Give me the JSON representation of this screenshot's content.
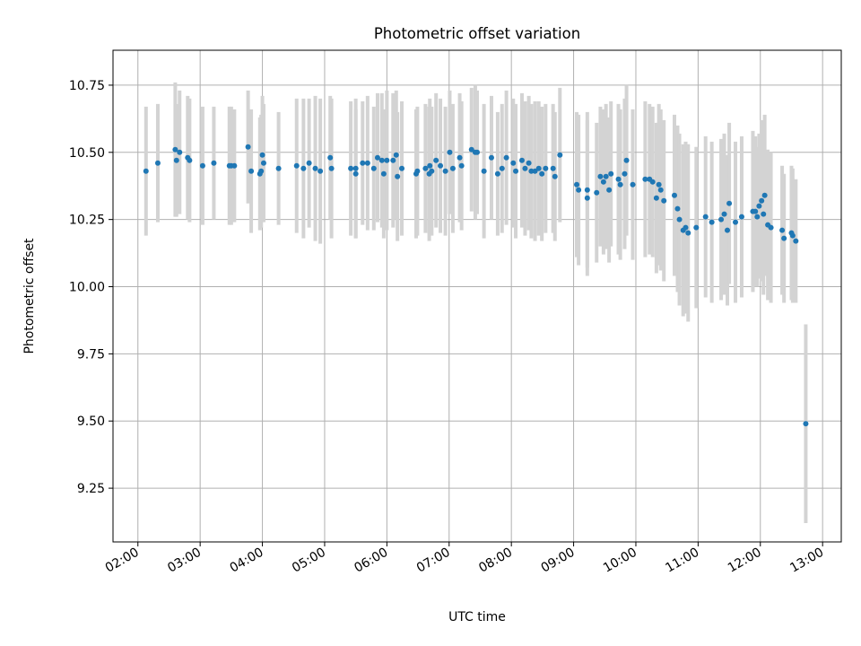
{
  "chart_data": {
    "type": "scatter",
    "title": "Photometric offset variation",
    "xlabel": "UTC time",
    "ylabel": "Photometric offset",
    "xlim_hours": [
      1.6,
      13.3
    ],
    "ylim": [
      9.05,
      10.88
    ],
    "x_ticks": [
      {
        "hour": 2,
        "label": "02:00"
      },
      {
        "hour": 3,
        "label": "03:00"
      },
      {
        "hour": 4,
        "label": "04:00"
      },
      {
        "hour": 5,
        "label": "05:00"
      },
      {
        "hour": 6,
        "label": "06:00"
      },
      {
        "hour": 7,
        "label": "07:00"
      },
      {
        "hour": 8,
        "label": "08:00"
      },
      {
        "hour": 9,
        "label": "09:00"
      },
      {
        "hour": 10,
        "label": "10:00"
      },
      {
        "hour": 11,
        "label": "11:00"
      },
      {
        "hour": 12,
        "label": "12:00"
      },
      {
        "hour": 13,
        "label": "13:00"
      }
    ],
    "y_ticks": [
      {
        "value": 9.25,
        "label": "9.25"
      },
      {
        "value": 9.5,
        "label": "9.50"
      },
      {
        "value": 9.75,
        "label": "9.75"
      },
      {
        "value": 10.0,
        "label": "10.00"
      },
      {
        "value": 10.25,
        "label": "10.25"
      },
      {
        "value": 10.5,
        "label": "10.50"
      },
      {
        "value": 10.75,
        "label": "10.75"
      }
    ],
    "grid": true,
    "marker_color": "#1f77b4",
    "errorbar_color": "#d3d3d3",
    "points": [
      [
        2.13,
        10.43,
        0.24
      ],
      [
        2.32,
        10.46,
        0.22
      ],
      [
        2.6,
        10.51,
        0.25
      ],
      [
        2.62,
        10.47,
        0.21
      ],
      [
        2.67,
        10.5,
        0.23
      ],
      [
        2.8,
        10.48,
        0.23
      ],
      [
        2.83,
        10.47,
        0.23
      ],
      [
        3.04,
        10.45,
        0.22
      ],
      [
        3.22,
        10.46,
        0.21
      ],
      [
        3.47,
        10.45,
        0.22
      ],
      [
        3.5,
        10.45,
        0.22
      ],
      [
        3.55,
        10.45,
        0.21
      ],
      [
        3.77,
        10.52,
        0.21
      ],
      [
        3.82,
        10.43,
        0.23
      ],
      [
        3.96,
        10.42,
        0.21
      ],
      [
        3.98,
        10.43,
        0.21
      ],
      [
        4.0,
        10.49,
        0.22
      ],
      [
        4.02,
        10.46,
        0.22
      ],
      [
        4.26,
        10.44,
        0.21
      ],
      [
        4.55,
        10.45,
        0.25
      ],
      [
        4.66,
        10.44,
        0.26
      ],
      [
        4.75,
        10.46,
        0.24
      ],
      [
        4.85,
        10.44,
        0.27
      ],
      [
        4.93,
        10.43,
        0.27
      ],
      [
        5.11,
        10.44,
        0.26
      ],
      [
        5.09,
        10.48,
        0.23
      ],
      [
        5.42,
        10.44,
        0.25
      ],
      [
        5.5,
        10.44,
        0.26
      ],
      [
        5.5,
        10.42,
        0.24
      ],
      [
        5.61,
        10.46,
        0.23
      ],
      [
        5.69,
        10.46,
        0.25
      ],
      [
        5.79,
        10.44,
        0.23
      ],
      [
        5.85,
        10.48,
        0.24
      ],
      [
        5.92,
        10.47,
        0.25
      ],
      [
        5.95,
        10.42,
        0.24
      ],
      [
        6.0,
        10.47,
        0.26
      ],
      [
        6.1,
        10.47,
        0.25
      ],
      [
        6.15,
        10.49,
        0.24
      ],
      [
        6.17,
        10.41,
        0.24
      ],
      [
        6.24,
        10.44,
        0.25
      ],
      [
        6.47,
        10.42,
        0.24
      ],
      [
        6.49,
        10.43,
        0.24
      ],
      [
        6.62,
        10.44,
        0.24
      ],
      [
        6.68,
        10.42,
        0.25
      ],
      [
        6.69,
        10.45,
        0.25
      ],
      [
        6.72,
        10.43,
        0.24
      ],
      [
        6.79,
        10.47,
        0.25
      ],
      [
        6.86,
        10.45,
        0.25
      ],
      [
        6.94,
        10.43,
        0.24
      ],
      [
        7.01,
        10.5,
        0.23
      ],
      [
        7.06,
        10.44,
        0.24
      ],
      [
        7.17,
        10.48,
        0.24
      ],
      [
        7.2,
        10.45,
        0.24
      ],
      [
        7.36,
        10.51,
        0.23
      ],
      [
        7.42,
        10.5,
        0.25
      ],
      [
        7.45,
        10.5,
        0.23
      ],
      [
        7.56,
        10.43,
        0.25
      ],
      [
        7.68,
        10.48,
        0.23
      ],
      [
        7.78,
        10.42,
        0.23
      ],
      [
        7.85,
        10.44,
        0.24
      ],
      [
        7.92,
        10.48,
        0.25
      ],
      [
        8.03,
        10.46,
        0.24
      ],
      [
        8.07,
        10.43,
        0.25
      ],
      [
        8.17,
        10.47,
        0.25
      ],
      [
        8.22,
        10.44,
        0.25
      ],
      [
        8.28,
        10.46,
        0.25
      ],
      [
        8.32,
        10.43,
        0.25
      ],
      [
        8.38,
        10.43,
        0.26
      ],
      [
        8.44,
        10.44,
        0.25
      ],
      [
        8.49,
        10.42,
        0.25
      ],
      [
        8.55,
        10.44,
        0.24
      ],
      [
        8.67,
        10.44,
        0.24
      ],
      [
        8.7,
        10.41,
        0.24
      ],
      [
        8.78,
        10.49,
        0.25
      ],
      [
        9.05,
        10.38,
        0.27
      ],
      [
        9.08,
        10.36,
        0.28
      ],
      [
        9.22,
        10.36,
        0.29
      ],
      [
        9.22,
        10.33,
        0.29
      ],
      [
        9.37,
        10.35,
        0.26
      ],
      [
        9.43,
        10.41,
        0.26
      ],
      [
        9.48,
        10.39,
        0.27
      ],
      [
        9.52,
        10.41,
        0.27
      ],
      [
        9.57,
        10.36,
        0.27
      ],
      [
        9.6,
        10.42,
        0.27
      ],
      [
        9.72,
        10.4,
        0.28
      ],
      [
        9.75,
        10.38,
        0.28
      ],
      [
        9.82,
        10.42,
        0.28
      ],
      [
        9.85,
        10.47,
        0.28
      ],
      [
        9.95,
        10.38,
        0.28
      ],
      [
        10.15,
        10.4,
        0.29
      ],
      [
        10.22,
        10.4,
        0.28
      ],
      [
        10.27,
        10.39,
        0.28
      ],
      [
        10.33,
        10.33,
        0.28
      ],
      [
        10.37,
        10.38,
        0.3
      ],
      [
        10.4,
        10.36,
        0.3
      ],
      [
        10.45,
        10.32,
        0.3
      ],
      [
        10.62,
        10.34,
        0.3
      ],
      [
        10.67,
        10.29,
        0.31
      ],
      [
        10.7,
        10.25,
        0.32
      ],
      [
        10.76,
        10.21,
        0.32
      ],
      [
        10.8,
        10.22,
        0.32
      ],
      [
        10.84,
        10.2,
        0.33
      ],
      [
        10.97,
        10.22,
        0.3
      ],
      [
        11.12,
        10.26,
        0.3
      ],
      [
        11.22,
        10.24,
        0.3
      ],
      [
        11.37,
        10.25,
        0.3
      ],
      [
        11.42,
        10.27,
        0.3
      ],
      [
        11.47,
        10.21,
        0.28
      ],
      [
        11.5,
        10.31,
        0.3
      ],
      [
        11.6,
        10.24,
        0.3
      ],
      [
        11.7,
        10.26,
        0.3
      ],
      [
        11.88,
        10.28,
        0.3
      ],
      [
        11.92,
        10.28,
        0.28
      ],
      [
        11.95,
        10.26,
        0.26
      ],
      [
        11.98,
        10.3,
        0.27
      ],
      [
        12.02,
        10.32,
        0.3
      ],
      [
        12.05,
        10.27,
        0.3
      ],
      [
        12.07,
        10.34,
        0.3
      ],
      [
        12.12,
        10.23,
        0.28
      ],
      [
        12.17,
        10.22,
        0.28
      ],
      [
        12.35,
        10.21,
        0.24
      ],
      [
        12.38,
        10.18,
        0.24
      ],
      [
        12.5,
        10.2,
        0.25
      ],
      [
        12.52,
        10.19,
        0.25
      ],
      [
        12.57,
        10.17,
        0.23
      ],
      [
        12.73,
        9.49,
        0.37
      ]
    ]
  }
}
